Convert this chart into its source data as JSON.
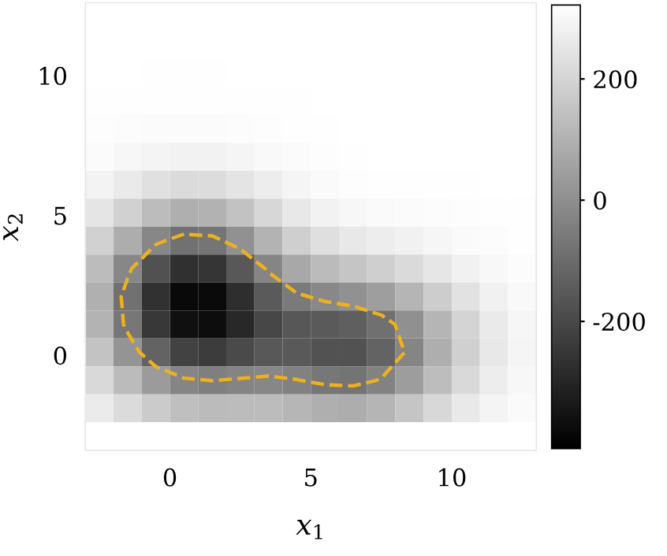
{
  "chart_data": {
    "type": "heatmap",
    "xlabel": "x$_{1}$",
    "ylabel": "x$_{2}$",
    "x": [
      -2.5,
      -1.5,
      -0.5,
      0.5,
      1.5,
      2.5,
      3.5,
      4.5,
      5.5,
      6.5,
      7.5,
      8.5,
      9.5,
      10.5,
      11.5,
      12.5
    ],
    "y": [
      12.1,
      11.1,
      10.1,
      9.1,
      8.1,
      7.1,
      6.1,
      5.1,
      4.1,
      3.1,
      2.1,
      1.1,
      0.1,
      -0.9,
      -1.9,
      -2.9
    ],
    "xlim": [
      -3,
      13
    ],
    "ylim": [
      -3.4,
      12.6
    ],
    "xticks": [
      0,
      5,
      10
    ],
    "yticks": [
      0,
      5,
      10
    ],
    "clim": [
      -410,
      322
    ],
    "cticks": [
      {
        "value": -200,
        "label": "-200"
      },
      0,
      200
    ],
    "cells": [
      [
        320,
        320,
        320,
        320,
        320,
        320,
        320,
        320,
        320,
        320,
        320,
        320,
        320,
        320,
        320,
        320
      ],
      [
        320,
        320,
        320,
        320,
        320,
        320,
        320,
        320,
        320,
        320,
        320,
        320,
        320,
        320,
        320,
        320
      ],
      [
        320,
        320,
        319,
        319,
        319,
        320,
        320,
        320,
        320,
        320,
        320,
        320,
        320,
        320,
        320,
        320
      ],
      [
        319,
        318,
        318,
        317,
        317,
        318,
        319,
        319,
        320,
        320,
        320,
        320,
        320,
        320,
        320,
        320
      ],
      [
        316,
        313,
        310,
        308,
        309,
        311,
        315,
        317,
        319,
        320,
        320,
        320,
        320,
        320,
        320,
        320
      ],
      [
        308,
        298,
        288,
        282,
        283,
        291,
        302,
        310,
        316,
        318,
        320,
        320,
        320,
        320,
        320,
        320
      ],
      [
        286,
        260,
        233,
        217,
        221,
        242,
        270,
        293,
        307,
        314,
        317,
        318,
        319,
        319,
        320,
        320
      ],
      [
        246,
        188,
        128,
        93,
        101,
        147,
        205,
        254,
        284,
        298,
        305,
        309,
        313,
        316,
        318,
        319
      ],
      [
        188,
        85,
        -22,
        -85,
        -73,
        5,
        103,
        183,
        230,
        254,
        268,
        281,
        295,
        306,
        313,
        317
      ],
      [
        129,
        -22,
        -177,
        -271,
        -258,
        -156,
        -28,
        73,
        127,
        156,
        182,
        215,
        250,
        280,
        301,
        312
      ],
      [
        94,
        -85,
        -269,
        -384,
        -379,
        -276,
        -150,
        -60,
        -21,
        5,
        44,
        108,
        178,
        239,
        281,
        304
      ],
      [
        103,
        -69,
        -248,
        -364,
        -372,
        -295,
        -206,
        -159,
        -151,
        -138,
        -89,
        3,
        108,
        199,
        261,
        296
      ],
      [
        150,
        16,
        -125,
        -221,
        -238,
        -198,
        -157,
        -153,
        -174,
        -175,
        -125,
        -27,
        88,
        187,
        256,
        293
      ],
      [
        212,
        127,
        35,
        -28,
        -46,
        -32,
        -23,
        -40,
        -68,
        -76,
        -37,
        40,
        133,
        213,
        268,
        299
      ],
      [
        264,
        219,
        171,
        138,
        126,
        130,
        128,
        112,
        92,
        86,
        108,
        154,
        209,
        257,
        289,
        307
      ],
      [
        320,
        320,
        320,
        320,
        320,
        320,
        320,
        320,
        320,
        320,
        320,
        320,
        320,
        320,
        320,
        320
      ]
    ],
    "grid": false
  }
}
